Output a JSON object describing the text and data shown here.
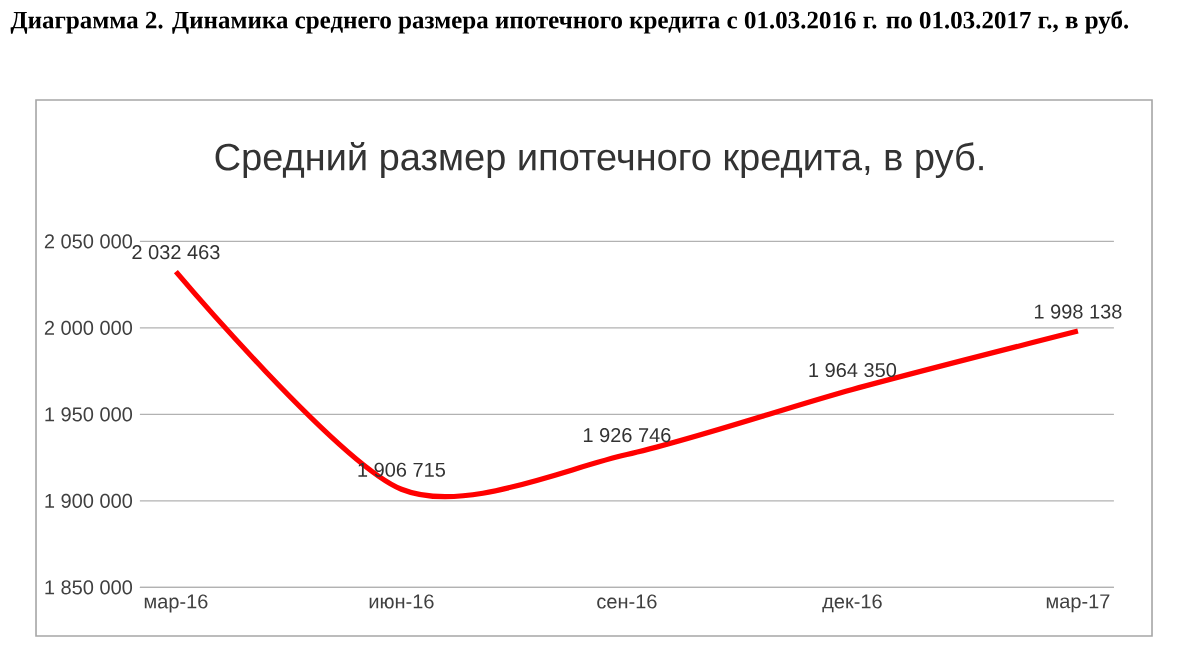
{
  "chart_data": {
    "type": "line",
    "title": "Средний размер ипотечного кредита, в руб.",
    "annotations": [
      "Диаграмма 2. Динамика среднего размера ипотечного кредита с 01.03.2016 г. по 01.03.2017 г., в руб."
    ],
    "categories": [
      "мар-16",
      "июн-16",
      "сен-16",
      "дек-16",
      "мар-17"
    ],
    "series": [
      {
        "color": "#ff0000",
        "values": [
          2032463,
          1906715,
          1926746,
          1964350,
          1998138
        ],
        "value_labels": [
          "2 032 463",
          "1 906 715",
          "1 926 746",
          "1 964 350",
          "1 998 138"
        ]
      }
    ],
    "ylim": [
      1850000,
      2050000
    ],
    "yticks": [
      {
        "value": 1850000,
        "label": "1 850 000"
      },
      {
        "value": 1900000,
        "label": "1 900 000"
      },
      {
        "value": 1950000,
        "label": "1 950 000"
      },
      {
        "value": 2000000,
        "label": "2 000 000"
      },
      {
        "value": 2050000,
        "label": "2 050 000"
      }
    ],
    "grid": "y",
    "marker": "none",
    "line_style": "solid"
  }
}
